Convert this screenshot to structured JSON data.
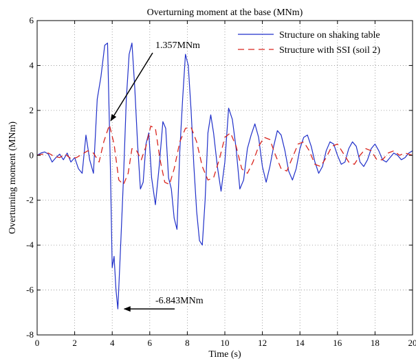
{
  "chart_data": {
    "type": "line",
    "title": "Overturning moment at the base (MNm)",
    "xlabel": "Time (s)",
    "ylabel": "Overturning moment (MNm)",
    "xlim": [
      0,
      20
    ],
    "ylim": [
      -8,
      6
    ],
    "xticks": [
      0,
      2,
      4,
      6,
      8,
      10,
      12,
      14,
      16,
      18,
      20
    ],
    "yticks": [
      -8,
      -6,
      -4,
      -2,
      0,
      2,
      4,
      6
    ],
    "grid": true,
    "legend_position": "top-right",
    "series": [
      {
        "name": "Structure on shaking table",
        "color": "#1f2fc9",
        "style": "solid",
        "x": [
          0,
          0.2,
          0.4,
          0.6,
          0.8,
          1.0,
          1.2,
          1.4,
          1.6,
          1.8,
          2.0,
          2.2,
          2.4,
          2.6,
          2.8,
          3.0,
          3.2,
          3.4,
          3.6,
          3.75,
          3.9,
          4.0,
          4.1,
          4.2,
          4.3,
          4.45,
          4.6,
          4.75,
          4.9,
          5.05,
          5.2,
          5.35,
          5.5,
          5.65,
          5.8,
          5.95,
          6.1,
          6.3,
          6.5,
          6.7,
          6.85,
          7.0,
          7.15,
          7.3,
          7.45,
          7.6,
          7.75,
          7.9,
          8.05,
          8.2,
          8.35,
          8.5,
          8.65,
          8.8,
          8.95,
          9.1,
          9.25,
          9.4,
          9.6,
          9.8,
          10.0,
          10.2,
          10.4,
          10.6,
          10.8,
          11.0,
          11.2,
          11.4,
          11.6,
          11.8,
          12.0,
          12.2,
          12.4,
          12.6,
          12.8,
          13.0,
          13.2,
          13.4,
          13.6,
          13.8,
          14.0,
          14.2,
          14.4,
          14.6,
          14.8,
          15.0,
          15.2,
          15.4,
          15.6,
          15.8,
          16.0,
          16.2,
          16.4,
          16.6,
          16.8,
          17.0,
          17.2,
          17.4,
          17.6,
          17.8,
          18.0,
          18.2,
          18.4,
          18.6,
          18.8,
          19.0,
          19.2,
          19.4,
          19.6,
          19.8,
          20.0
        ],
        "y": [
          0,
          0.1,
          0.15,
          0.05,
          -0.3,
          -0.1,
          0.05,
          -0.2,
          0.1,
          -0.3,
          -0.1,
          -0.6,
          -0.8,
          0.9,
          -0.2,
          -0.8,
          2.5,
          3.5,
          4.9,
          5.0,
          -0.5,
          -5.0,
          -4.5,
          -6.0,
          -6.843,
          -4.0,
          -1.0,
          2.5,
          4.5,
          5.0,
          3.0,
          0.5,
          -1.5,
          -1.2,
          0.5,
          1.0,
          -1.0,
          -2.2,
          -0.5,
          1.5,
          1.2,
          -1.0,
          -1.5,
          -2.8,
          -3.3,
          0.2,
          2.5,
          4.5,
          4.0,
          2.0,
          -0.5,
          -2.5,
          -3.8,
          -4.0,
          -2.0,
          1.0,
          1.8,
          1.0,
          -0.5,
          -1.6,
          -0.3,
          2.1,
          1.6,
          0.3,
          -1.5,
          -1.1,
          0.3,
          0.9,
          1.4,
          0.8,
          -0.5,
          -1.2,
          -0.5,
          0.4,
          1.1,
          0.9,
          0.2,
          -0.7,
          -1.1,
          -0.6,
          0.3,
          0.8,
          0.9,
          0.4,
          -0.3,
          -0.8,
          -0.5,
          0.2,
          0.6,
          0.5,
          0.0,
          -0.4,
          -0.3,
          0.3,
          0.6,
          0.4,
          -0.3,
          -0.5,
          -0.2,
          0.3,
          0.5,
          0.2,
          -0.2,
          -0.3,
          -0.1,
          0.1,
          0.0,
          -0.2,
          -0.1,
          0.1,
          0.2
        ]
      },
      {
        "name": "Structure with SSI (soil 2)",
        "color": "#d9241c",
        "style": "dashed",
        "x": [
          0,
          0.3,
          0.6,
          0.9,
          1.2,
          1.5,
          1.8,
          2.1,
          2.4,
          2.7,
          3.0,
          3.3,
          3.55,
          3.85,
          4.1,
          4.35,
          4.6,
          4.85,
          5.05,
          5.3,
          5.55,
          5.8,
          6.05,
          6.3,
          6.55,
          6.8,
          7.05,
          7.3,
          7.6,
          7.9,
          8.2,
          8.5,
          8.8,
          9.1,
          9.4,
          9.7,
          10.0,
          10.3,
          10.6,
          10.9,
          11.2,
          11.5,
          11.8,
          12.1,
          12.4,
          12.7,
          13.0,
          13.3,
          13.6,
          13.9,
          14.2,
          14.5,
          14.8,
          15.1,
          15.4,
          15.7,
          16.0,
          16.3,
          16.6,
          16.9,
          17.2,
          17.5,
          17.8,
          18.1,
          18.4,
          18.7,
          19.0,
          19.3,
          19.6,
          20.0
        ],
        "y": [
          0,
          0.05,
          0.1,
          -0.05,
          -0.1,
          0.05,
          -0.15,
          -0.1,
          0.05,
          0.2,
          0.1,
          -0.3,
          0.6,
          1.357,
          0.5,
          -1.1,
          -1.3,
          -0.8,
          0.3,
          0.2,
          -0.2,
          0.4,
          1.3,
          1.2,
          -0.2,
          -1.2,
          -1.3,
          -0.6,
          0.6,
          1.2,
          1.25,
          0.6,
          -0.5,
          -1.1,
          -1.0,
          -0.2,
          0.8,
          1.0,
          0.4,
          -0.6,
          -0.8,
          -0.3,
          0.4,
          0.8,
          0.7,
          0.0,
          -0.6,
          -0.7,
          -0.1,
          0.5,
          0.6,
          0.2,
          -0.4,
          -0.5,
          -0.1,
          0.4,
          0.5,
          0.1,
          -0.3,
          -0.4,
          0.0,
          0.3,
          0.2,
          -0.2,
          -0.2,
          0.1,
          0.2,
          0.0,
          0.1,
          0.0
        ]
      }
    ],
    "annotations": [
      {
        "text": "1.357MNm",
        "x": 3.85,
        "y": 1.357
      },
      {
        "text": "-6.843MNm",
        "x": 4.35,
        "y": -6.843
      }
    ]
  }
}
